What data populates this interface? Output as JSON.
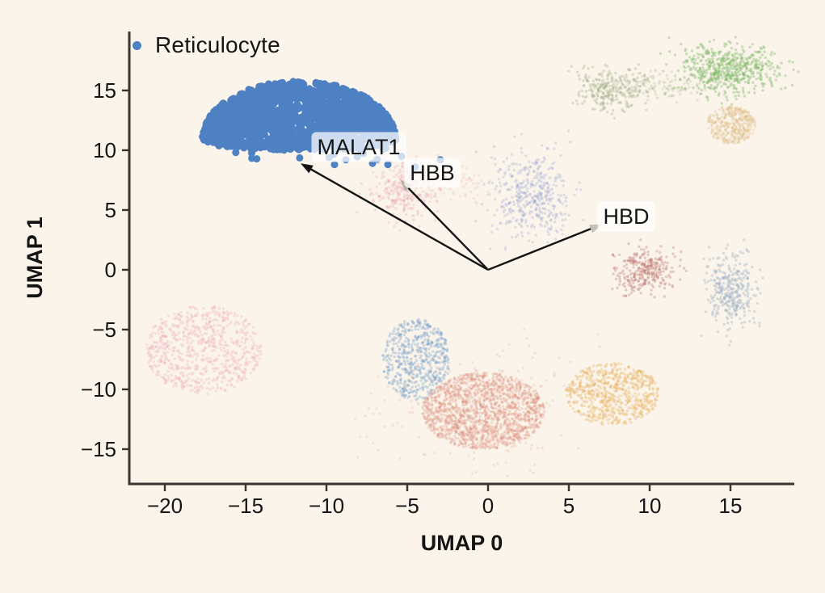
{
  "figure": {
    "background": "#faf4ea",
    "axis_color": "#393430",
    "text_color": "#141414"
  },
  "legend": {
    "label": "Reticulocyte",
    "marker_color": "#4e81c3"
  },
  "chart_data": {
    "type": "scatter",
    "title": "",
    "xlabel": "UMAP 0",
    "ylabel": "UMAP 1",
    "xlim": [
      -22.2,
      18.95
    ],
    "ylim": [
      -17.91,
      19.93
    ],
    "xticks": [
      -20,
      -15,
      -10,
      -5,
      0,
      5,
      10,
      15
    ],
    "yticks": [
      15,
      10,
      5,
      0,
      -5,
      -10,
      -15
    ],
    "grid": false,
    "legend_position": "upper left",
    "highlight_series": {
      "name": "Reticulocyte",
      "color": "#4e81c3",
      "shape": "dome",
      "center_x": -11.7,
      "base_y": 10.9,
      "radius_x": 6.0,
      "height_y": 4.9,
      "n_points": 1500,
      "stragglers": 24,
      "point_radius": 4.5,
      "outliers": [
        [
          -8.8,
          9.2
        ],
        [
          -8.0,
          10.1
        ],
        [
          -7.15,
          8.9
        ],
        [
          -6.2,
          8.8
        ],
        [
          -5.35,
          9.5
        ],
        [
          -2.95,
          9.2
        ],
        [
          -4.5,
          8.6
        ],
        [
          -9.5,
          8.8
        ]
      ]
    },
    "background_clusters": [
      {
        "name": "pink-left",
        "dist": "disc",
        "cx": -17.6,
        "cy": -6.7,
        "sx": 3.6,
        "sy": 3.7,
        "n": 720,
        "color": "#f0a8bc",
        "alpha": 0.3
      },
      {
        "name": "steelblue-mid",
        "dist": "disc",
        "cx": -4.45,
        "cy": -7.5,
        "sx": 2.1,
        "sy": 3.4,
        "n": 560,
        "color": "#7aa3cb",
        "alpha": 0.35
      },
      {
        "name": "salmon-large",
        "dist": "disc",
        "cx": -0.3,
        "cy": -11.8,
        "sx": 3.8,
        "sy": 3.2,
        "n": 1500,
        "color": "#dd9181",
        "alpha": 0.3
      },
      {
        "name": "salmon-halo",
        "dist": "gauss",
        "cx": -0.3,
        "cy": -11.5,
        "sx": 3.0,
        "sy": 2.6,
        "n": 260,
        "color": "#dd9181",
        "alpha": 0.18
      },
      {
        "name": "golden-lowerright",
        "dist": "disc",
        "cx": 7.7,
        "cy": -10.4,
        "sx": 2.9,
        "sy": 2.6,
        "n": 640,
        "color": "#e7b161",
        "alpha": 0.35
      },
      {
        "name": "maroon-right",
        "dist": "gauss",
        "cx": 9.6,
        "cy": -0.1,
        "sx": 0.95,
        "sy": 0.95,
        "n": 300,
        "color": "#bf7876",
        "alpha": 0.35
      },
      {
        "name": "bluegrey-right",
        "dist": "gauss",
        "cx": 15.0,
        "cy": -1.8,
        "sx": 0.75,
        "sy": 1.6,
        "n": 330,
        "color": "#97abbf",
        "alpha": 0.35
      },
      {
        "name": "lavender-mid",
        "dist": "gauss",
        "cx": 2.7,
        "cy": 6.2,
        "sx": 1.25,
        "sy": 1.9,
        "n": 430,
        "color": "#9ba4cf",
        "alpha": 0.3
      },
      {
        "name": "pink-small-upper",
        "dist": "gauss",
        "cx": -5.2,
        "cy": 6.7,
        "sx": 1.15,
        "sy": 1.25,
        "n": 300,
        "color": "#e8a2b0",
        "alpha": 0.28
      },
      {
        "name": "pink-wisp",
        "dist": "gauss",
        "cx": -2.5,
        "cy": 7.0,
        "sx": 1.2,
        "sy": 0.8,
        "n": 70,
        "color": "#e8a2b0",
        "alpha": 0.2
      },
      {
        "name": "green-topright",
        "dist": "gauss",
        "cx": 14.8,
        "cy": 16.8,
        "sx": 1.5,
        "sy": 1.0,
        "n": 560,
        "color": "#85bb6d",
        "alpha": 0.4
      },
      {
        "name": "olive-top",
        "dist": "gauss",
        "cx": 7.6,
        "cy": 15.1,
        "sx": 1.1,
        "sy": 0.9,
        "n": 260,
        "color": "#a3b089",
        "alpha": 0.35
      },
      {
        "name": "olive-band",
        "dist": "gauss",
        "cx": 10.3,
        "cy": 15.4,
        "sx": 2.0,
        "sy": 0.55,
        "n": 130,
        "color": "#a3b089",
        "alpha": 0.25
      },
      {
        "name": "tan-topright",
        "dist": "disc",
        "cx": 15.05,
        "cy": 12.15,
        "sx": 1.5,
        "sy": 1.6,
        "n": 380,
        "color": "#e2c492",
        "alpha": 0.35
      }
    ],
    "annotations": [
      {
        "label": "MALAT1",
        "origin": [
          0,
          0
        ],
        "tip": [
          -11.6,
          8.9
        ],
        "text_pos": [
          -8.0,
          10.27
        ],
        "head_color": "#141414",
        "boxed": true
      },
      {
        "label": "HBB",
        "origin": [
          0,
          0
        ],
        "tip": [
          -5.45,
          7.55
        ],
        "text_pos": [
          -3.45,
          8.11
        ],
        "head_color": "#b8b3aa",
        "boxed": true
      },
      {
        "label": "HBD",
        "origin": [
          0,
          0
        ],
        "tip": [
          7.05,
          3.8
        ],
        "text_pos": [
          8.55,
          4.46
        ],
        "head_color": "#c4c0b8",
        "boxed": true
      }
    ]
  }
}
